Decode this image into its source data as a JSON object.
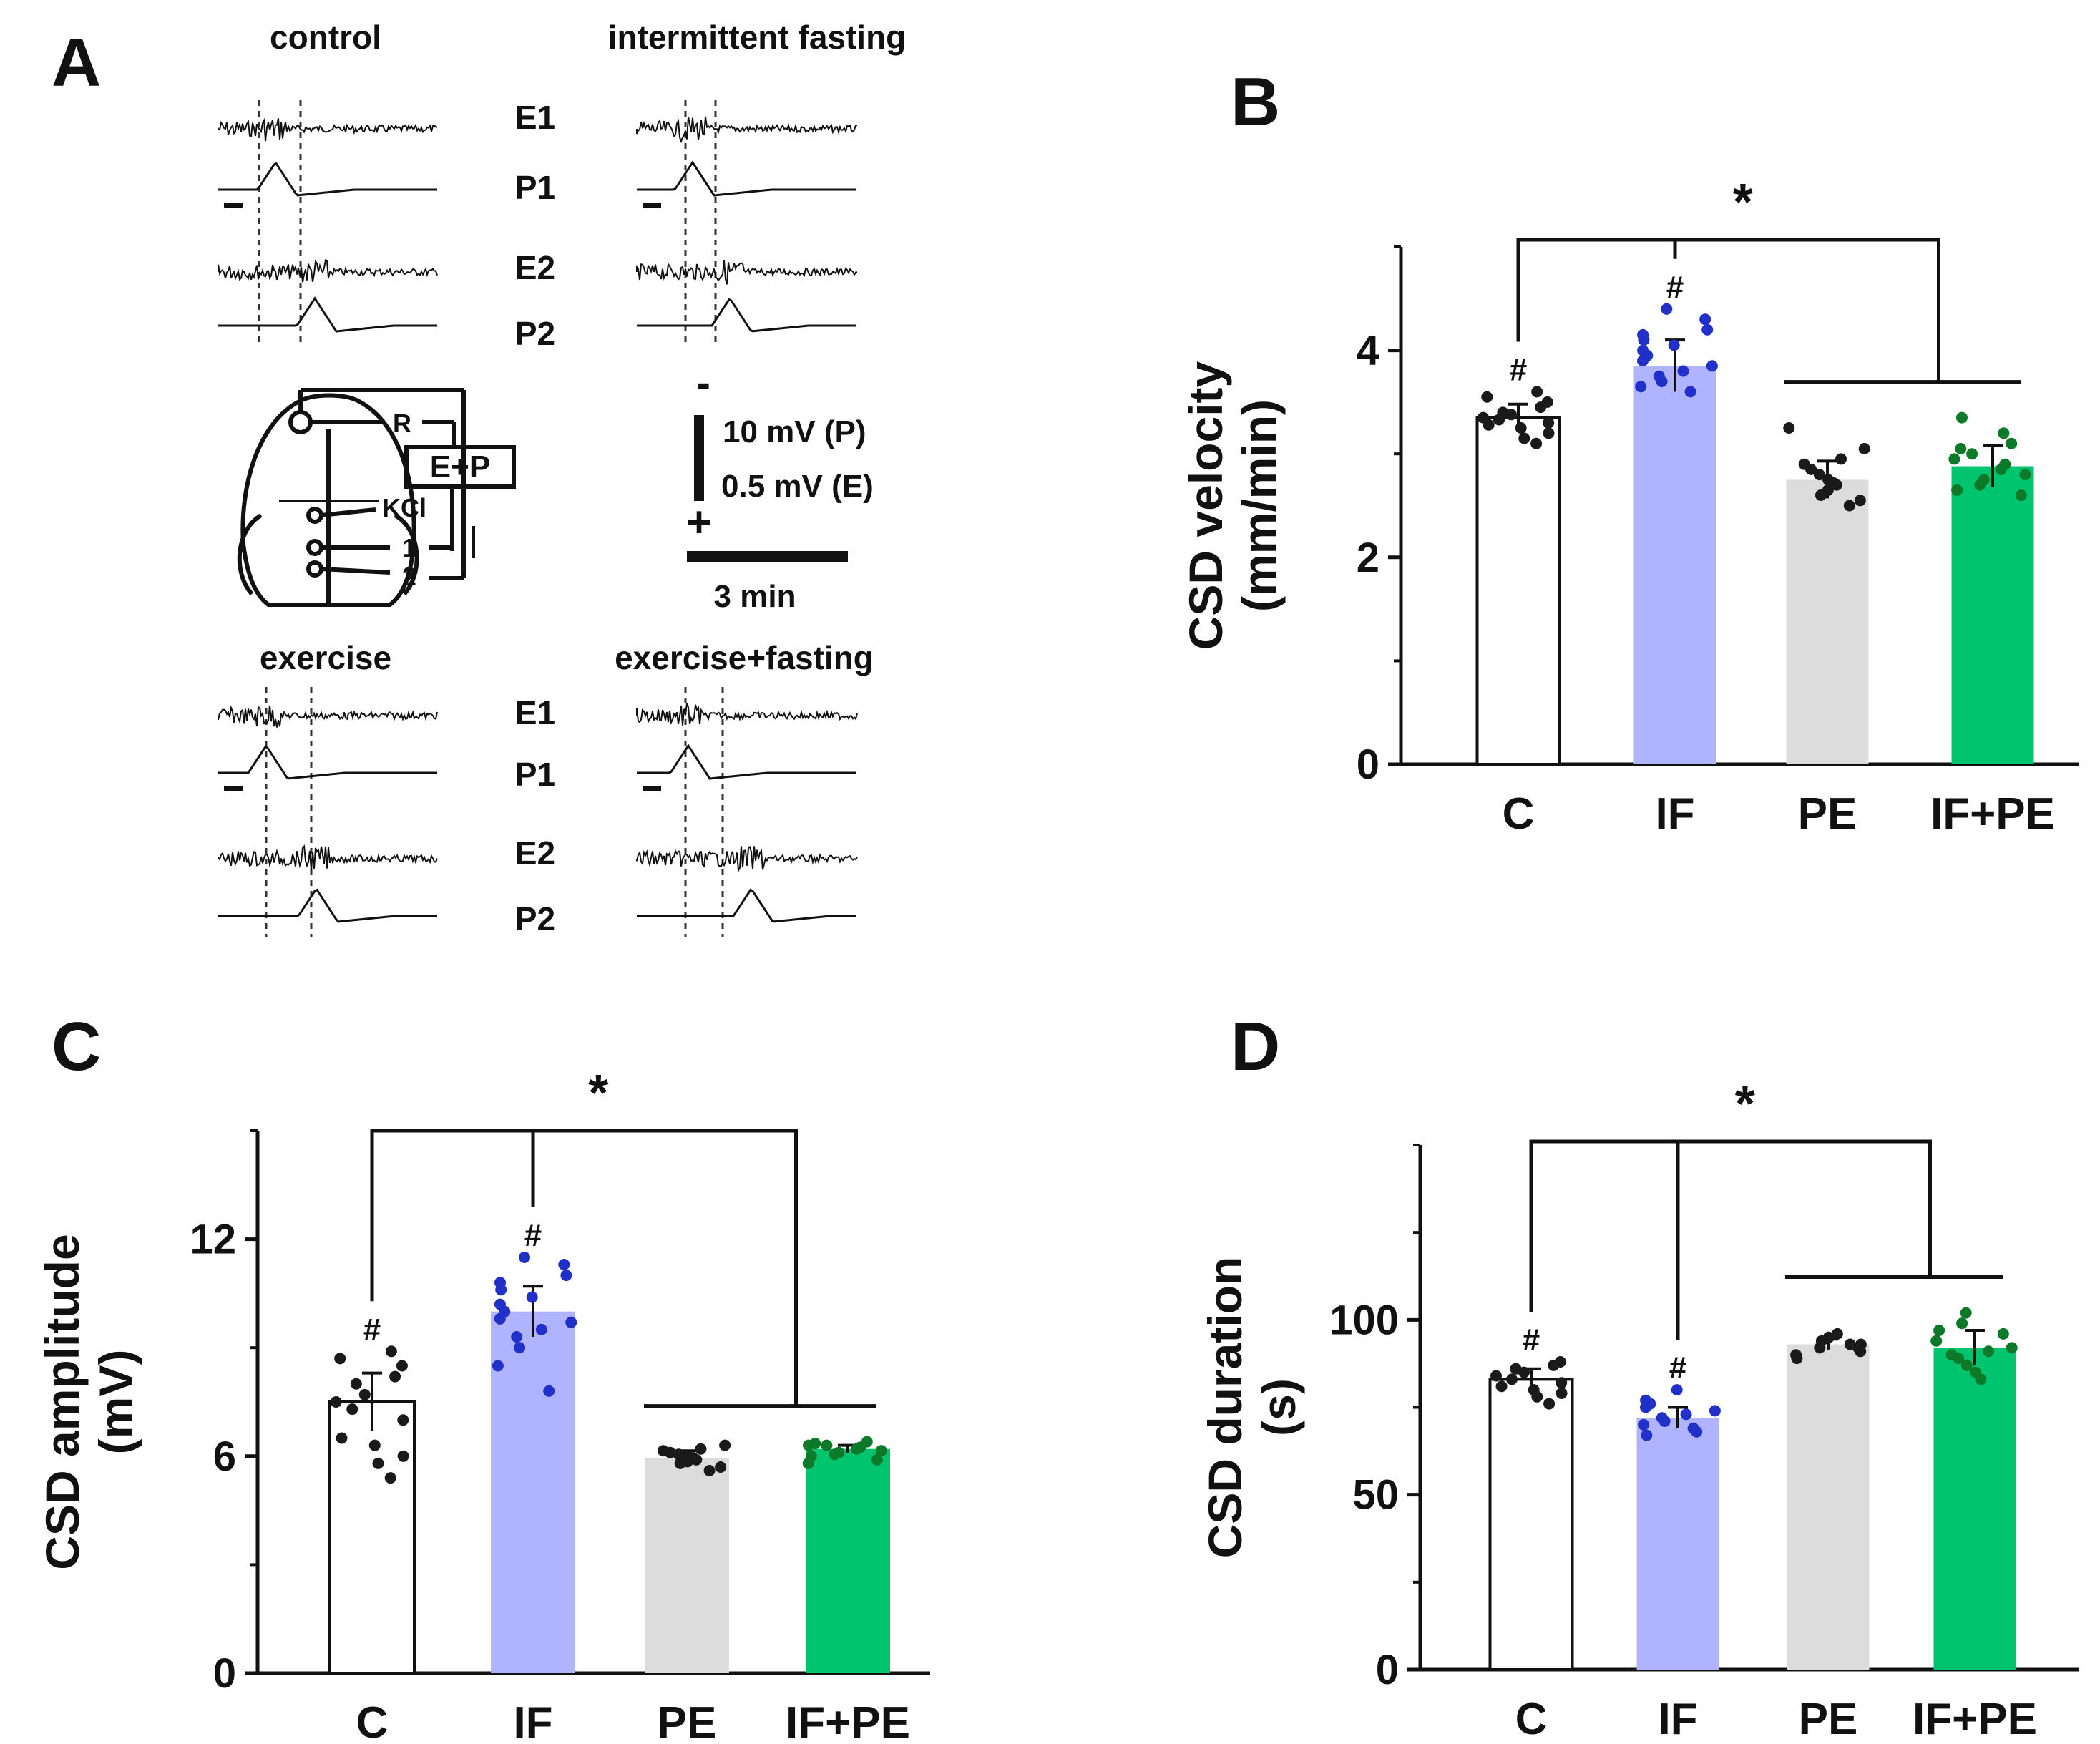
{
  "panel_a": {
    "letter": "A",
    "conditions": [
      {
        "title": "control"
      },
      {
        "title": "intermittent fasting"
      },
      {
        "title": "exercise"
      },
      {
        "title": "exercise+fasting"
      }
    ],
    "trace_labels": [
      "E1",
      "P1",
      "E2",
      "P2"
    ],
    "diagram_labels": {
      "reference": "R",
      "recording": "E+P",
      "stimulus": "KCl",
      "electrode_1": "1",
      "electrode_2": "2"
    },
    "scale_bar": {
      "minus": "-",
      "plus": "+",
      "voltage_p": "10  mV (P)",
      "voltage_e": "0.5 mV (E)",
      "time": "3 min"
    }
  },
  "chart_data": [
    {
      "panel": "B",
      "type": "bar",
      "categories": [
        "C",
        "IF",
        "PE",
        "IF+PE"
      ],
      "values": [
        3.35,
        3.85,
        2.75,
        2.88
      ],
      "errors": [
        0.13,
        0.25,
        0.18,
        0.2
      ],
      "colors": [
        "#ffffff",
        "#b0b4ff",
        "#dcdcdc",
        "#00c46e"
      ],
      "point_colors": [
        "#1a1a1a",
        "#2030c8",
        "#1a1a1a",
        "#0d7a2a"
      ],
      "points": [
        [
          3.1,
          3.15,
          3.2,
          3.25,
          3.28,
          3.3,
          3.33,
          3.35,
          3.38,
          3.4,
          3.45,
          3.5,
          3.55,
          3.6
        ],
        [
          3.6,
          3.65,
          3.7,
          3.75,
          3.8,
          3.85,
          3.9,
          3.95,
          4.0,
          4.05,
          4.1,
          4.15,
          4.2,
          4.3,
          4.4
        ],
        [
          2.5,
          2.55,
          2.6,
          2.65,
          2.7,
          2.72,
          2.75,
          2.8,
          2.85,
          2.9,
          2.95,
          3.05,
          3.25
        ],
        [
          2.6,
          2.65,
          2.7,
          2.75,
          2.8,
          2.85,
          2.9,
          2.95,
          3.0,
          3.05,
          3.1,
          3.2,
          3.35
        ]
      ],
      "hash_marks": [
        "#",
        "#",
        "",
        ""
      ],
      "significance": "*",
      "ylabel": "CSD velocity",
      "ylabel_units": "(mm/min)",
      "yticks": [
        "0",
        "2",
        "4"
      ],
      "ytick_values": [
        0,
        2,
        4
      ],
      "ylim": [
        0,
        5
      ]
    },
    {
      "panel": "C",
      "type": "bar",
      "categories": [
        "C",
        "IF",
        "PE",
        "IF+PE"
      ],
      "values": [
        7.5,
        10.0,
        5.95,
        6.2
      ],
      "errors": [
        0.8,
        0.7,
        0.2,
        0.1
      ],
      "colors": [
        "#ffffff",
        "#b0b4ff",
        "#dcdcdc",
        "#00c46e"
      ],
      "point_colors": [
        "#1a1a1a",
        "#2030c8",
        "#1a1a1a",
        "#0d7a2a"
      ],
      "points": [
        [
          5.4,
          5.8,
          6.0,
          6.3,
          6.5,
          7.0,
          7.3,
          7.5,
          7.7,
          8.0,
          8.2,
          8.5,
          8.7,
          8.9
        ],
        [
          7.8,
          8.5,
          9.0,
          9.3,
          9.5,
          9.7,
          9.8,
          10.0,
          10.2,
          10.4,
          10.6,
          10.8,
          11.0,
          11.3,
          11.5
        ],
        [
          5.6,
          5.7,
          5.8,
          5.85,
          5.9,
          5.95,
          6.0,
          6.05,
          6.1,
          6.15,
          6.2,
          6.3
        ],
        [
          5.8,
          5.9,
          6.0,
          6.05,
          6.1,
          6.15,
          6.2,
          6.25,
          6.3,
          6.3,
          6.35,
          6.4
        ]
      ],
      "hash_marks": [
        "#",
        "#",
        "",
        ""
      ],
      "significance": "*",
      "ylabel": "CSD amplitude",
      "ylabel_units": "(mV)",
      "yticks": [
        "0",
        "6",
        "12"
      ],
      "ytick_values": [
        0,
        6,
        12
      ],
      "ylim": [
        0,
        15
      ]
    },
    {
      "panel": "D",
      "type": "bar",
      "categories": [
        "C",
        "IF",
        "PE",
        "IF+PE"
      ],
      "values": [
        83,
        72,
        93,
        92
      ],
      "errors": [
        3,
        3,
        1.5,
        5
      ],
      "colors": [
        "#ffffff",
        "#b0b4ff",
        "#dcdcdc",
        "#00c46e"
      ],
      "point_colors": [
        "#1a1a1a",
        "#2030c8",
        "#1a1a1a",
        "#0d7a2a"
      ],
      "points": [
        [
          76,
          78,
          79,
          80,
          81,
          82,
          83,
          84,
          85,
          86,
          87,
          88
        ],
        [
          67,
          68,
          69,
          70,
          71,
          72,
          73,
          74,
          75,
          76,
          77,
          80
        ],
        [
          89,
          90,
          91,
          92,
          92,
          93,
          93,
          94,
          95,
          96
        ],
        [
          83,
          85,
          87,
          89,
          90,
          91,
          92,
          94,
          96,
          97,
          99,
          102
        ]
      ],
      "hash_marks": [
        "#",
        "#",
        "",
        ""
      ],
      "significance": "*",
      "ylabel": "CSD duration",
      "ylabel_units": "(s)",
      "yticks": [
        "0",
        "50",
        "100"
      ],
      "ytick_values": [
        0,
        50,
        100
      ],
      "ylim": [
        0,
        150
      ]
    }
  ]
}
